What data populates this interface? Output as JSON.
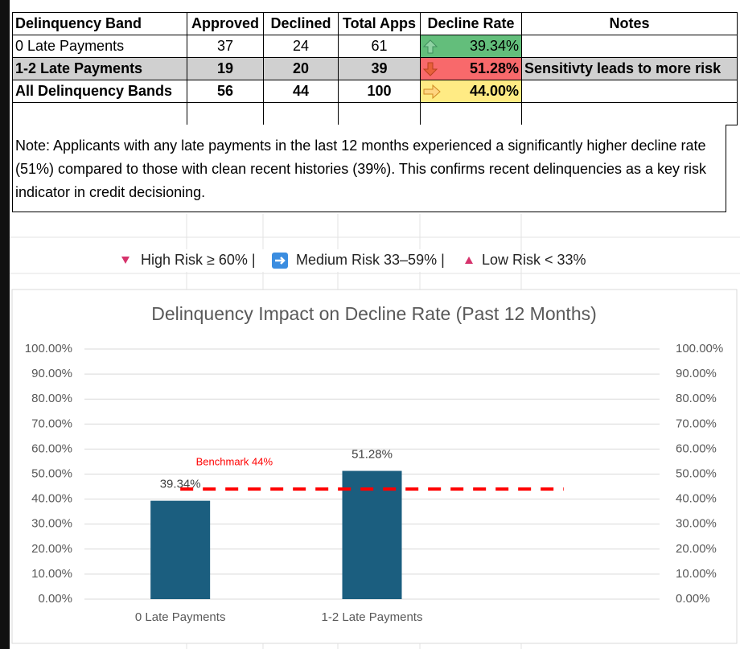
{
  "table": {
    "header": [
      "Delinquency Band",
      "Approved",
      "Declined",
      "Total Apps",
      "Decline Rate",
      "Notes"
    ],
    "rows": [
      [
        "0 Late Payments",
        37,
        24,
        61,
        "39.34%"
      ],
      [
        "1-2 Late Payments",
        19,
        20,
        39,
        "51.28%",
        "Sensitivty leads to more risk"
      ],
      [
        "All Delinquency Bands",
        56,
        44,
        100,
        "44.00%"
      ]
    ]
  },
  "note": "Note: Applicants with any late payments in the last 12 months experienced a significantly higher decline rate (51%) compared to those with clean recent histories (39%). This confirms recent delinquencies as a key risk indicator in credit decisioning.",
  "risk_legend": [
    "High Risk ≥ 60% |",
    "Medium Risk 33–59% |",
    "Low Risk < 33%"
  ],
  "chart_data": {
    "type": "bar",
    "title": "Delinquency Impact on Decline Rate (Past 12 Months)",
    "categories": [
      "0 Late Payments",
      "1-2 Late Payments",
      null
    ],
    "series": [
      {
        "color": "#1b5e7f",
        "values": [
          39.34,
          51.28,
          null
        ],
        "value_labels": [
          "39.34%",
          "51.28%",
          null
        ]
      },
      {
        "name": "Benchmark 44%",
        "type": "line",
        "color": "#ff0000",
        "values": [
          44,
          44,
          44
        ]
      }
    ],
    "ylim": [
      0,
      100
    ],
    "yticks": [
      {
        "value": 0,
        "label": "0.00%"
      },
      {
        "value": 10,
        "label": "10.00%"
      },
      {
        "value": 20,
        "label": "20.00%"
      },
      {
        "value": 30,
        "label": "30.00%"
      },
      {
        "value": 40,
        "label": "40.00%"
      },
      {
        "value": 50,
        "label": "50.00%"
      },
      {
        "value": 60,
        "label": "60.00%"
      },
      {
        "value": 70,
        "label": "70.00%"
      },
      {
        "value": 80,
        "label": "80.00%"
      },
      {
        "value": 90,
        "label": "90.00%"
      },
      {
        "value": 100,
        "label": "100.00%"
      }
    ],
    "y2lim": [
      0,
      100
    ],
    "y2ticks": [
      {
        "value": 0,
        "label": "0.00%"
      },
      {
        "value": 10,
        "label": "10.00%"
      },
      {
        "value": 20,
        "label": "20.00%"
      },
      {
        "value": 30,
        "label": "30.00%"
      },
      {
        "value": 40,
        "label": "40.00%"
      },
      {
        "value": 50,
        "label": "50.00%"
      },
      {
        "value": 60,
        "label": "60.00%"
      },
      {
        "value": 70,
        "label": "70.00%"
      },
      {
        "value": 80,
        "label": "80.00%"
      },
      {
        "value": 90,
        "label": "90.00%"
      },
      {
        "value": 100,
        "label": "100.00%"
      }
    ],
    "grid": true
  }
}
